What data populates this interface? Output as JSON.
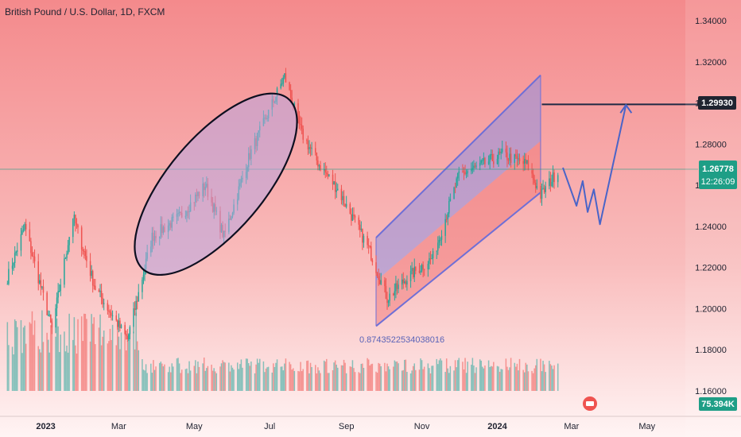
{
  "chart_data": {
    "type": "candlestick",
    "title": "British Pound / U.S. Dollar, 1D, FXCM",
    "y_axis": {
      "range": [
        1.15,
        1.35
      ],
      "ticks": [
        "1.34000",
        "1.32000",
        "1.30000",
        "1.28000",
        "1.26000",
        "1.24000",
        "1.22000",
        "1.20000",
        "1.18000",
        "1.16000"
      ]
    },
    "x_axis": {
      "ticks": [
        "2023",
        "Mar",
        "May",
        "Jul",
        "Sep",
        "Nov",
        "2024",
        "Mar",
        "May"
      ]
    },
    "price_series": {
      "name": "GBPUSD",
      "key_points": [
        {
          "date": "2022-12-01",
          "price": 1.215
        },
        {
          "date": "2022-12-15",
          "price": 1.24
        },
        {
          "date": "2023-01-06",
          "price": 1.19
        },
        {
          "date": "2023-01-23",
          "price": 1.245
        },
        {
          "date": "2023-02-10",
          "price": 1.21
        },
        {
          "date": "2023-03-08",
          "price": 1.185
        },
        {
          "date": "2023-03-28",
          "price": 1.235
        },
        {
          "date": "2023-04-20",
          "price": 1.245
        },
        {
          "date": "2023-05-10",
          "price": 1.26
        },
        {
          "date": "2023-05-25",
          "price": 1.235
        },
        {
          "date": "2023-06-15",
          "price": 1.275
        },
        {
          "date": "2023-07-13",
          "price": 1.313
        },
        {
          "date": "2023-07-27",
          "price": 1.285
        },
        {
          "date": "2023-08-10",
          "price": 1.27
        },
        {
          "date": "2023-08-25",
          "price": 1.258
        },
        {
          "date": "2023-09-20",
          "price": 1.228
        },
        {
          "date": "2023-10-04",
          "price": 1.205
        },
        {
          "date": "2023-10-20",
          "price": 1.215
        },
        {
          "date": "2023-11-10",
          "price": 1.225
        },
        {
          "date": "2023-12-01",
          "price": 1.265
        },
        {
          "date": "2023-12-20",
          "price": 1.27
        },
        {
          "date": "2024-01-05",
          "price": 1.275
        },
        {
          "date": "2024-01-25",
          "price": 1.27
        },
        {
          "date": "2024-02-05",
          "price": 1.255
        },
        {
          "date": "2024-02-20",
          "price": 1.268
        }
      ]
    },
    "price_labels": {
      "target": "1.29930",
      "current": "1.26778",
      "countdown": "12:26:09",
      "volume": "75.394K"
    },
    "annotation_text": "0.8743522534038016",
    "colors": {
      "up": "#26a69a",
      "down": "#ef5350",
      "channel_outline": "#6f6fd6",
      "channel_fill_upper": "#8f8fe0",
      "channel_fill_lower": "#f07070",
      "projection": "#4a64c8",
      "target_line": "#1f2a44",
      "current_badge": "#1e9e86"
    },
    "grid": false,
    "legend": "none"
  }
}
